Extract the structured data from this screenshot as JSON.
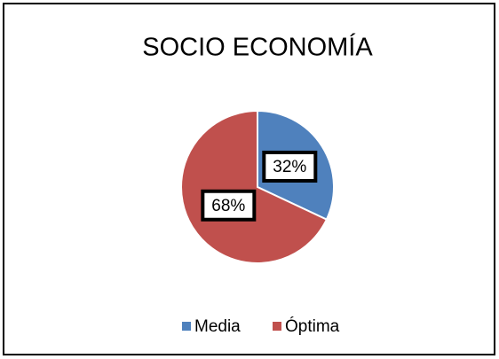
{
  "chart_data": {
    "type": "pie",
    "title": "SOCIO ECONOMÍA",
    "categories": [
      "Media",
      "Óptima"
    ],
    "values": [
      32,
      68
    ],
    "value_labels": [
      "32%",
      "68%"
    ],
    "colors": [
      "#4f81bd",
      "#c0504d"
    ],
    "legend": "bottom"
  }
}
